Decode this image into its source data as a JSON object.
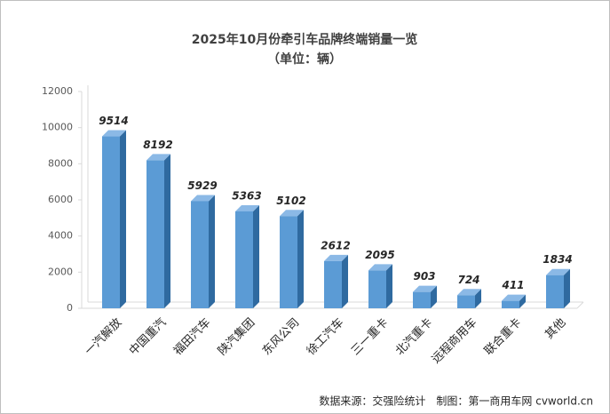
{
  "chart_data": {
    "type": "bar",
    "title": "2025年10月份牵引车品牌终端销量一览",
    "subtitle": "（单位：辆）",
    "categories": [
      "一汽解放",
      "中国重汽",
      "福田汽车",
      "陕汽集团",
      "东风公司",
      "徐工汽车",
      "三一重卡",
      "北汽重卡",
      "远程商用车",
      "联合重卡",
      "其他"
    ],
    "values": [
      9514,
      8192,
      5929,
      5363,
      5102,
      2612,
      2095,
      903,
      724,
      411,
      1834
    ],
    "color": "#5b9bd5",
    "ylim": [
      0,
      12000
    ],
    "yticks": [
      0,
      2000,
      4000,
      6000,
      8000,
      10000,
      12000
    ],
    "grid": false,
    "source": "数据来源：交强险统计　制图：第一商用车网 cvworld.cn"
  }
}
